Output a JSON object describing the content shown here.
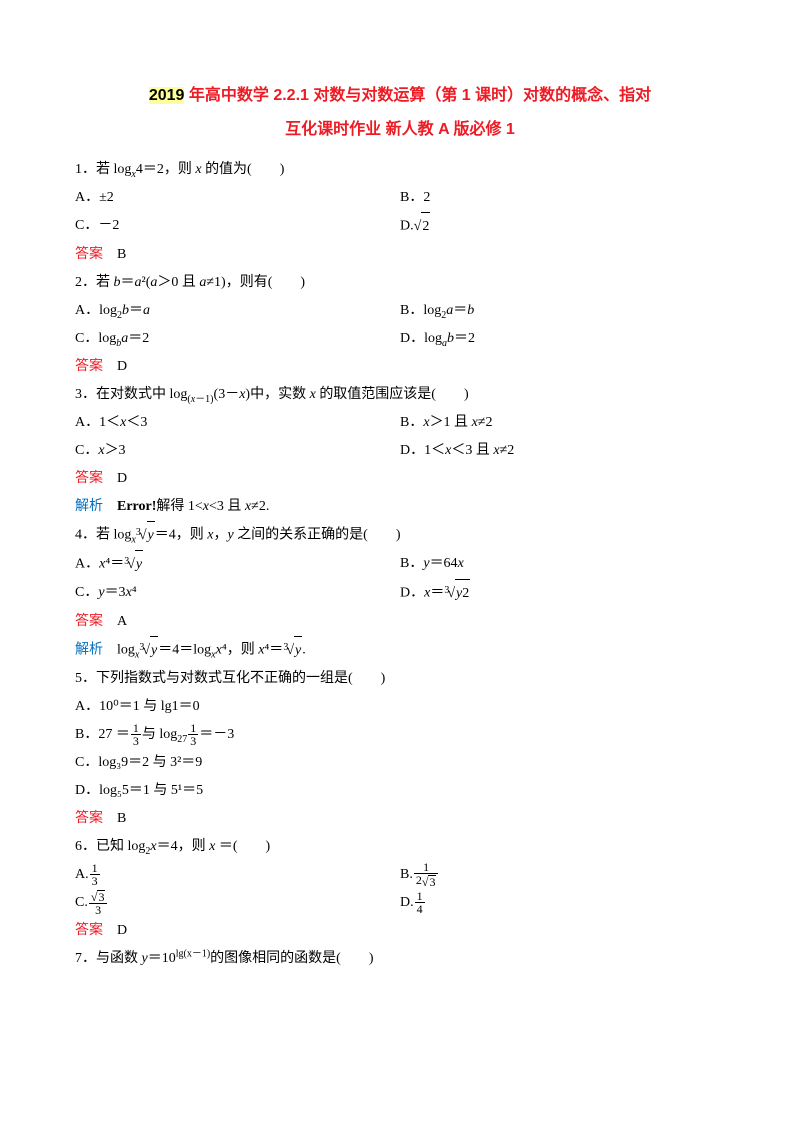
{
  "title": {
    "year_prefix": "2019",
    "line1_rest": " 年高中数学 2.2.1 对数与对数运算（第 1 课时）对数的概念、指对",
    "line2": "互化课时作业 新人教 A 版必修 1"
  },
  "colors": {
    "highlight": "#ffff99",
    "red": "#ed1c24",
    "blue": "#0070c0",
    "black": "#000000"
  },
  "labels": {
    "answer": "答案",
    "analysis": "解析"
  },
  "q1": {
    "text_a": "1．若 log",
    "sub1": "x",
    "text_b": "4＝2，则 ",
    "var1": "x",
    "text_c": " 的值为(　　)",
    "optA": "A．±2",
    "optB": "B．2",
    "optC": "C．－2",
    "optD_pre": "D.",
    "optD_rad": "2",
    "ans": "　B"
  },
  "q2": {
    "text": "2．若 b＝a²(a＞0 且 a≠1)，则有(　　)",
    "optA_a": "A．log",
    "optA_sub": "2",
    "optA_b": "b＝a",
    "optB_a": "B．log",
    "optB_sub": "2",
    "optB_b": "a＝b",
    "optC_a": "C．log",
    "optC_sub": "b",
    "optC_b": "a＝2",
    "optD_a": "D．log",
    "optD_sub": "a",
    "optD_b": "b＝2",
    "ans": "　D"
  },
  "q3": {
    "text": "3．在对数式中 log(x－1)(3－x)中，实数 x 的取值范围应该是(　　)",
    "optA": "A．1＜x＜3",
    "optB": "B．x＞1 且 x≠2",
    "optC": "C．x＞3",
    "optD": "D．1＜x＜3 且 x≠2",
    "ans": "　D",
    "ana_strong": "Error!",
    "ana_rest": "解得 1<x<3 且 x≠2."
  },
  "q4": {
    "text_a": "4．若 log",
    "text_sub": "x",
    "root_idx": "3",
    "root_rad": "y",
    "text_b": "＝4，则 x，y 之间的关系正确的是(　　)",
    "optA_a": "A．x⁴＝",
    "optA_idx": "3",
    "optA_rad": "y",
    "optB": "B．y＝64x",
    "optC": "C．y＝3x⁴",
    "optD_a": "D．x＝",
    "optD_idx": "3",
    "optD_rad": "y2",
    "ans": "　A",
    "ana_a": "　log",
    "ana_sub1": "x",
    "ana_idx1": "3",
    "ana_rad1": "y",
    "ana_b": "＝4＝log",
    "ana_sub2": "x",
    "ana_c": "x⁴，则 x⁴＝",
    "ana_idx2": "3",
    "ana_rad2": "y",
    "ana_d": "."
  },
  "q5": {
    "text": "5．下列指数式与对数式互化不正确的一组是(　　)",
    "optA": "A．10⁰＝1 与 lg1＝0",
    "optB_a": "B．27 ＝",
    "optB_num1": "1",
    "optB_den1": "3",
    "optB_mid": "与 log",
    "optB_sub": "27",
    "optB_num2": "1",
    "optB_den2": "3",
    "optB_b": "＝－3",
    "optC": "C．log₃9＝2 与 3²＝9",
    "optD": "D．log₅5＝1 与 5¹＝5",
    "ans": "　B"
  },
  "q6": {
    "text": "6．已知 log₂x＝4，则 x ＝(　　)",
    "optA_pre": "A.",
    "optA_num": "1",
    "optA_den": "3",
    "optB_pre": "B.",
    "optB_num": "1",
    "optB_den_a": "2",
    "optB_den_rad": "3",
    "optC_pre": "C.",
    "optC_num_rad": "3",
    "optC_den": "3",
    "optD_pre": "D.",
    "optD_num": "1",
    "optD_den": "4",
    "ans": "　D"
  },
  "q7": {
    "text_a": "7．与函数 y＝10",
    "exp": "lg(x－1)",
    "text_b": "的图像相同的函数是(　　)"
  }
}
